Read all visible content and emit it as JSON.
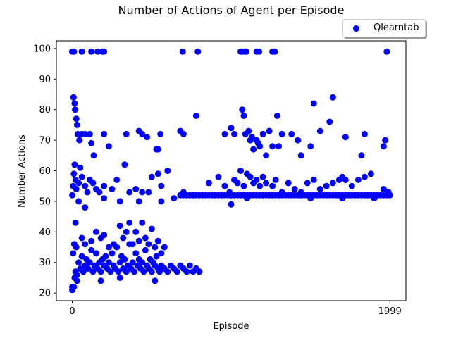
{
  "chart_data": {
    "type": "scatter",
    "title": "Number of Actions of Agent per Episode",
    "xlabel": "Episode",
    "ylabel": "Number Actions",
    "xlim": [
      -100,
      2100
    ],
    "ylim": [
      17.5,
      102.5
    ],
    "xticks": [
      0,
      1999
    ],
    "yticks": [
      20,
      30,
      40,
      50,
      60,
      70,
      80,
      90,
      100
    ],
    "grid": false,
    "legend_position": "top-right, above plot",
    "series": [
      {
        "name": "Qlearntab",
        "color": "#0000ff",
        "marker": "circle",
        "points": [
          [
            0,
            99
          ],
          [
            10,
            99
          ],
          [
            60,
            99
          ],
          [
            120,
            99
          ],
          [
            160,
            99
          ],
          [
            190,
            99
          ],
          [
            200,
            99
          ],
          [
            695,
            99
          ],
          [
            790,
            99
          ],
          [
            1060,
            99
          ],
          [
            1070,
            99
          ],
          [
            1085,
            99
          ],
          [
            1095,
            99
          ],
          [
            1160,
            99
          ],
          [
            1175,
            99
          ],
          [
            1260,
            99
          ],
          [
            1275,
            99
          ],
          [
            1980,
            99
          ],
          [
            8,
            84
          ],
          [
            15,
            82
          ],
          [
            18,
            80
          ],
          [
            25,
            77
          ],
          [
            30,
            75
          ],
          [
            35,
            72
          ],
          [
            45,
            70
          ],
          [
            60,
            72
          ],
          [
            80,
            72
          ],
          [
            110,
            72
          ],
          [
            120,
            69
          ],
          [
            135,
            65
          ],
          [
            200,
            72
          ],
          [
            230,
            68
          ],
          [
            340,
            72
          ],
          [
            420,
            73
          ],
          [
            440,
            72
          ],
          [
            470,
            71
          ],
          [
            530,
            67
          ],
          [
            540,
            67
          ],
          [
            555,
            72
          ],
          [
            680,
            73
          ],
          [
            700,
            72
          ],
          [
            780,
            78
          ],
          [
            960,
            72
          ],
          [
            1000,
            74
          ],
          [
            1020,
            72
          ],
          [
            1070,
            80
          ],
          [
            1080,
            78
          ],
          [
            1090,
            72
          ],
          [
            1110,
            73
          ],
          [
            1120,
            70
          ],
          [
            1130,
            71
          ],
          [
            1140,
            67
          ],
          [
            1160,
            70
          ],
          [
            1170,
            69
          ],
          [
            1180,
            68
          ],
          [
            1200,
            72
          ],
          [
            1220,
            65
          ],
          [
            1240,
            73
          ],
          [
            1260,
            68
          ],
          [
            1290,
            78
          ],
          [
            1300,
            68
          ],
          [
            1320,
            72
          ],
          [
            1380,
            72
          ],
          [
            1420,
            70
          ],
          [
            1440,
            65
          ],
          [
            1500,
            68
          ],
          [
            1520,
            82
          ],
          [
            1560,
            73
          ],
          [
            1620,
            76
          ],
          [
            1640,
            84
          ],
          [
            1720,
            71
          ],
          [
            1820,
            65
          ],
          [
            1840,
            72
          ],
          [
            1960,
            68
          ],
          [
            1970,
            70
          ],
          [
            0,
            52
          ],
          [
            5,
            55
          ],
          [
            10,
            59
          ],
          [
            15,
            62
          ],
          [
            20,
            57
          ],
          [
            25,
            54
          ],
          [
            40,
            56
          ],
          [
            50,
            61
          ],
          [
            60,
            58
          ],
          [
            80,
            55
          ],
          [
            95,
            53
          ],
          [
            110,
            57
          ],
          [
            130,
            56
          ],
          [
            150,
            54
          ],
          [
            170,
            53
          ],
          [
            200,
            55
          ],
          [
            250,
            54
          ],
          [
            280,
            57
          ],
          [
            330,
            62
          ],
          [
            360,
            53
          ],
          [
            400,
            54
          ],
          [
            440,
            53
          ],
          [
            480,
            53
          ],
          [
            500,
            58
          ],
          [
            540,
            59
          ],
          [
            560,
            55
          ],
          [
            600,
            60
          ],
          [
            640,
            51
          ],
          [
            700,
            53
          ],
          [
            760,
            52
          ],
          [
            860,
            56
          ],
          [
            920,
            58
          ],
          [
            960,
            55
          ],
          [
            990,
            53
          ],
          [
            1020,
            57
          ],
          [
            1040,
            56
          ],
          [
            1060,
            60
          ],
          [
            1080,
            55
          ],
          [
            1100,
            59
          ],
          [
            1120,
            58
          ],
          [
            1140,
            56
          ],
          [
            1160,
            57
          ],
          [
            1180,
            55
          ],
          [
            1200,
            58
          ],
          [
            1220,
            56
          ],
          [
            1260,
            55
          ],
          [
            1280,
            57
          ],
          [
            1320,
            53
          ],
          [
            1360,
            56
          ],
          [
            1400,
            54
          ],
          [
            1440,
            53
          ],
          [
            1480,
            56
          ],
          [
            1520,
            57
          ],
          [
            1560,
            54
          ],
          [
            1600,
            55
          ],
          [
            1640,
            56
          ],
          [
            1680,
            57
          ],
          [
            1700,
            58
          ],
          [
            1720,
            57
          ],
          [
            1760,
            55
          ],
          [
            1800,
            57
          ],
          [
            1840,
            58
          ],
          [
            1880,
            59
          ],
          [
            1960,
            54
          ],
          [
            1990,
            53
          ],
          [
            40,
            50
          ],
          [
            80,
            48
          ],
          [
            200,
            51
          ],
          [
            300,
            50
          ],
          [
            420,
            50
          ],
          [
            560,
            50
          ],
          [
            680,
            52
          ],
          [
            1000,
            49
          ],
          [
            1100,
            51
          ],
          [
            1300,
            52
          ],
          [
            1500,
            51
          ],
          [
            1700,
            51
          ],
          [
            1900,
            51
          ],
          [
            700,
            52
          ],
          [
            720,
            52
          ],
          [
            740,
            52
          ],
          [
            760,
            52
          ],
          [
            780,
            52
          ],
          [
            800,
            52
          ],
          [
            820,
            52
          ],
          [
            840,
            52
          ],
          [
            860,
            52
          ],
          [
            880,
            52
          ],
          [
            900,
            52
          ],
          [
            920,
            52
          ],
          [
            940,
            52
          ],
          [
            960,
            52
          ],
          [
            980,
            52
          ],
          [
            1000,
            52
          ],
          [
            1020,
            52
          ],
          [
            1040,
            52
          ],
          [
            1060,
            52
          ],
          [
            1080,
            52
          ],
          [
            1100,
            52
          ],
          [
            1120,
            52
          ],
          [
            1140,
            52
          ],
          [
            1160,
            52
          ],
          [
            1180,
            52
          ],
          [
            1200,
            52
          ],
          [
            1220,
            52
          ],
          [
            1240,
            52
          ],
          [
            1260,
            52
          ],
          [
            1280,
            52
          ],
          [
            1300,
            52
          ],
          [
            1320,
            52
          ],
          [
            1340,
            52
          ],
          [
            1360,
            52
          ],
          [
            1380,
            52
          ],
          [
            1400,
            52
          ],
          [
            1420,
            52
          ],
          [
            1440,
            52
          ],
          [
            1460,
            52
          ],
          [
            1480,
            52
          ],
          [
            1500,
            52
          ],
          [
            1520,
            52
          ],
          [
            1540,
            52
          ],
          [
            1560,
            52
          ],
          [
            1580,
            52
          ],
          [
            1600,
            52
          ],
          [
            1620,
            52
          ],
          [
            1640,
            52
          ],
          [
            1660,
            52
          ],
          [
            1680,
            52
          ],
          [
            1700,
            52
          ],
          [
            1720,
            52
          ],
          [
            1740,
            52
          ],
          [
            1760,
            52
          ],
          [
            1780,
            52
          ],
          [
            1800,
            52
          ],
          [
            1820,
            52
          ],
          [
            1840,
            52
          ],
          [
            1860,
            52
          ],
          [
            1880,
            52
          ],
          [
            1900,
            52
          ],
          [
            1920,
            52
          ],
          [
            1940,
            52
          ],
          [
            1960,
            52
          ],
          [
            1980,
            52
          ],
          [
            1999,
            52
          ],
          [
            0,
            21
          ],
          [
            10,
            22
          ],
          [
            15,
            25
          ],
          [
            20,
            27
          ],
          [
            30,
            26
          ],
          [
            5,
            33
          ],
          [
            12,
            36
          ],
          [
            25,
            35
          ],
          [
            40,
            30
          ],
          [
            50,
            28
          ],
          [
            60,
            32
          ],
          [
            70,
            27
          ],
          [
            80,
            29
          ],
          [
            90,
            31
          ],
          [
            100,
            28
          ],
          [
            110,
            30
          ],
          [
            120,
            34
          ],
          [
            130,
            27
          ],
          [
            140,
            29
          ],
          [
            150,
            33
          ],
          [
            160,
            28
          ],
          [
            170,
            30
          ],
          [
            180,
            27
          ],
          [
            190,
            31
          ],
          [
            200,
            29
          ],
          [
            210,
            32
          ],
          [
            220,
            28
          ],
          [
            230,
            30
          ],
          [
            240,
            27
          ],
          [
            250,
            33
          ],
          [
            260,
            29
          ],
          [
            270,
            28
          ],
          [
            280,
            35
          ],
          [
            290,
            27
          ],
          [
            300,
            30
          ],
          [
            310,
            32
          ],
          [
            320,
            28
          ],
          [
            330,
            31
          ],
          [
            340,
            27
          ],
          [
            350,
            29
          ],
          [
            360,
            36
          ],
          [
            370,
            28
          ],
          [
            380,
            30
          ],
          [
            390,
            27
          ],
          [
            400,
            33
          ],
          [
            410,
            29
          ],
          [
            420,
            31
          ],
          [
            430,
            28
          ],
          [
            440,
            30
          ],
          [
            450,
            27
          ],
          [
            460,
            34
          ],
          [
            470,
            29
          ],
          [
            480,
            28
          ],
          [
            490,
            31
          ],
          [
            500,
            27
          ],
          [
            510,
            30
          ],
          [
            520,
            29
          ],
          [
            530,
            32
          ],
          [
            540,
            28
          ],
          [
            550,
            27
          ],
          [
            560,
            29
          ],
          [
            580,
            28
          ],
          [
            600,
            27
          ],
          [
            620,
            29
          ],
          [
            640,
            28
          ],
          [
            660,
            27
          ],
          [
            680,
            29
          ],
          [
            700,
            28
          ],
          [
            720,
            27
          ],
          [
            740,
            29
          ],
          [
            760,
            27
          ],
          [
            780,
            28
          ],
          [
            800,
            27
          ],
          [
            20,
            43
          ],
          [
            60,
            38
          ],
          [
            80,
            36
          ],
          [
            120,
            37
          ],
          [
            150,
            40
          ],
          [
            180,
            38
          ],
          [
            200,
            39
          ],
          [
            230,
            35
          ],
          [
            260,
            36
          ],
          [
            300,
            42
          ],
          [
            320,
            38
          ],
          [
            340,
            40
          ],
          [
            360,
            43
          ],
          [
            380,
            36
          ],
          [
            400,
            40
          ],
          [
            420,
            37
          ],
          [
            440,
            43
          ],
          [
            460,
            38
          ],
          [
            480,
            36
          ],
          [
            500,
            41
          ],
          [
            520,
            35
          ],
          [
            540,
            37
          ],
          [
            560,
            33
          ],
          [
            580,
            35
          ],
          [
            30,
            24
          ],
          [
            180,
            24
          ],
          [
            300,
            25
          ],
          [
            520,
            24
          ],
          [
            0,
            22
          ]
        ]
      }
    ]
  }
}
